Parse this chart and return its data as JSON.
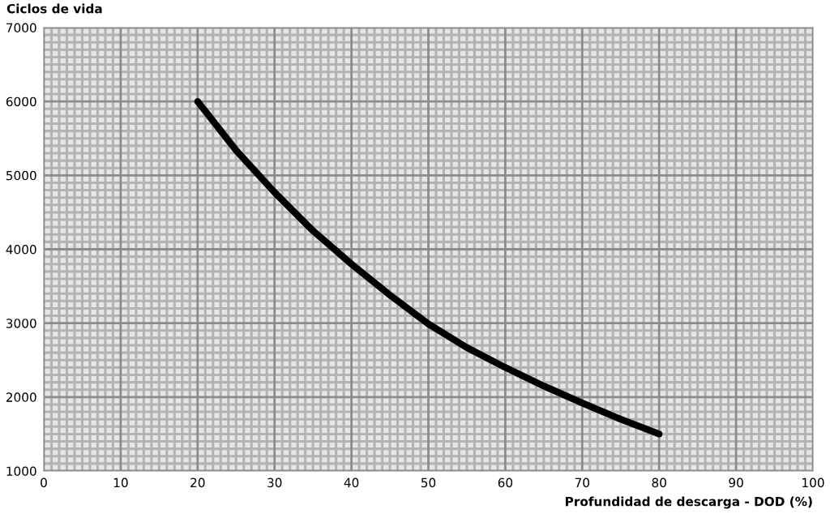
{
  "chart_data": {
    "type": "line",
    "ylabel": "Ciclos de vida",
    "xlabel": "Profundidad de descarga - DOD (%)",
    "x": [
      20,
      25,
      30,
      35,
      40,
      45,
      50,
      55,
      60,
      65,
      70,
      75,
      80
    ],
    "series": [
      {
        "color": "#000000",
        "values": [
          6000,
          5340,
          4770,
          4250,
          3800,
          3380,
          2990,
          2670,
          2400,
          2150,
          1920,
          1700,
          1500
        ]
      }
    ],
    "xlim": [
      0,
      100
    ],
    "xticks": [
      0,
      10,
      20,
      30,
      40,
      50,
      60,
      70,
      80,
      90,
      100
    ],
    "ylim": [
      1000,
      7000
    ],
    "yticks": [
      1000,
      2000,
      3000,
      4000,
      5000,
      6000,
      7000
    ],
    "grid": true,
    "marker": "none",
    "line_style": "solid"
  }
}
